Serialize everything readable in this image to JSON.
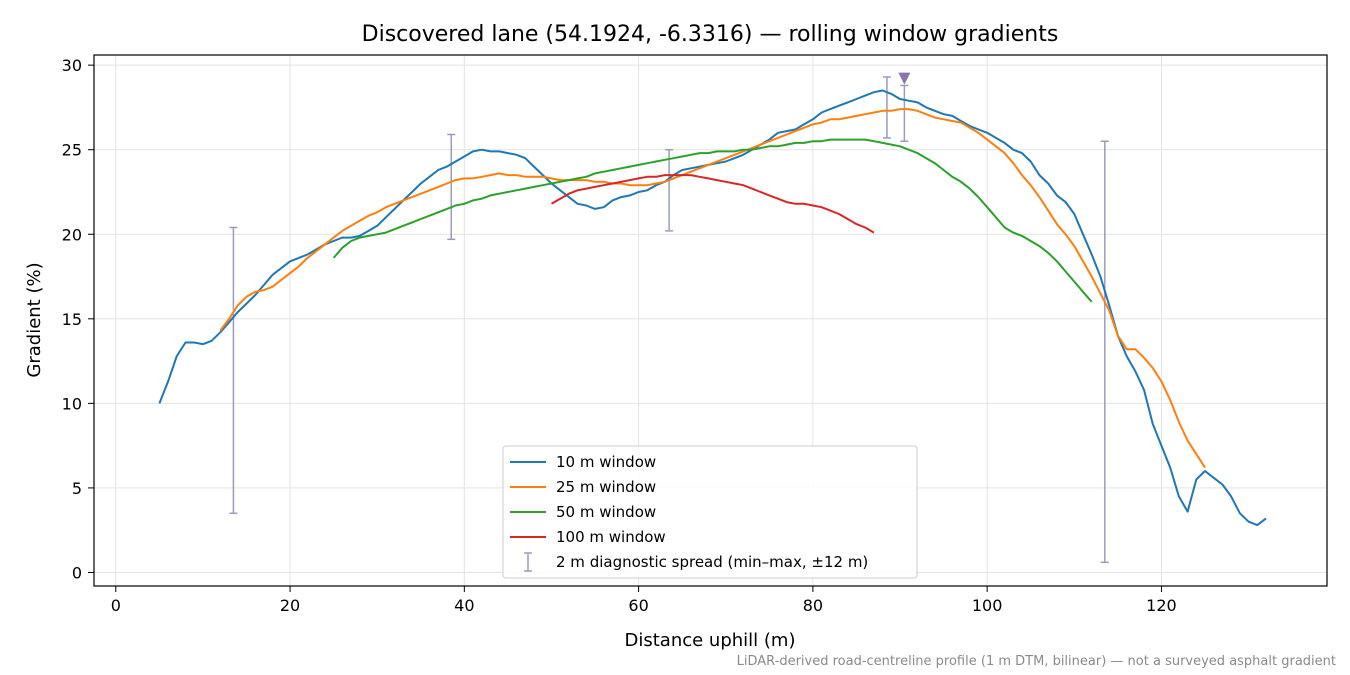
{
  "chart_data": {
    "type": "line",
    "title": "Discovered lane (54.1924, -6.3316) — rolling window gradients",
    "xlabel": "Distance uphill (m)",
    "ylabel": "Gradient (%)",
    "xlim": [
      -2.5,
      139
    ],
    "ylim": [
      -0.8,
      30.6
    ],
    "xticks": [
      0,
      20,
      40,
      60,
      80,
      100,
      120
    ],
    "yticks": [
      0,
      5,
      10,
      15,
      20,
      25,
      30
    ],
    "grid": true,
    "legend_position": "bottom-center",
    "footnote": "LiDAR-derived road-centreline profile (1 m DTM, bilinear) — not a surveyed asphalt gradient",
    "series": [
      {
        "name": "10 m window",
        "color": "#1f77b4",
        "x": [
          5,
          6,
          7,
          8,
          9,
          10,
          11,
          12,
          13,
          14,
          15,
          16,
          17,
          18,
          19,
          20,
          21,
          22,
          23,
          24,
          25,
          26,
          27,
          28,
          29,
          30,
          31,
          32,
          33,
          34,
          35,
          36,
          37,
          38,
          39,
          40,
          41,
          42,
          43,
          44,
          45,
          46,
          47,
          48,
          49,
          50,
          51,
          52,
          53,
          54,
          55,
          56,
          57,
          58,
          59,
          60,
          61,
          62,
          63,
          64,
          65,
          66,
          67,
          68,
          69,
          70,
          71,
          72,
          73,
          74,
          75,
          76,
          77,
          78,
          79,
          80,
          81,
          82,
          83,
          84,
          85,
          86,
          87,
          88,
          89,
          90,
          91,
          92,
          93,
          94,
          95,
          96,
          97,
          98,
          99,
          100,
          101,
          102,
          103,
          104,
          105,
          106,
          107,
          108,
          109,
          110,
          111,
          112,
          113,
          114,
          115,
          116,
          117,
          118,
          119,
          120,
          121,
          122,
          123,
          124,
          125,
          126,
          127,
          128,
          129,
          130,
          131,
          132
        ],
        "values": [
          10.0,
          11.3,
          12.8,
          13.6,
          13.6,
          13.5,
          13.7,
          14.2,
          14.8,
          15.4,
          15.9,
          16.4,
          17.0,
          17.6,
          18.0,
          18.4,
          18.6,
          18.8,
          19.1,
          19.4,
          19.6,
          19.8,
          19.8,
          19.9,
          20.2,
          20.5,
          21.0,
          21.5,
          22.0,
          22.5,
          23.0,
          23.4,
          23.8,
          24.0,
          24.3,
          24.6,
          24.9,
          25.0,
          24.9,
          24.9,
          24.8,
          24.7,
          24.5,
          24.0,
          23.5,
          23.0,
          22.6,
          22.2,
          21.8,
          21.7,
          21.5,
          21.6,
          22.0,
          22.2,
          22.3,
          22.5,
          22.6,
          22.9,
          23.1,
          23.5,
          23.8,
          23.9,
          24.0,
          24.1,
          24.2,
          24.3,
          24.5,
          24.7,
          25.0,
          25.3,
          25.6,
          26.0,
          26.1,
          26.2,
          26.5,
          26.8,
          27.2,
          27.4,
          27.6,
          27.8,
          28.0,
          28.2,
          28.4,
          28.5,
          28.3,
          28.0,
          27.9,
          27.8,
          27.5,
          27.3,
          27.1,
          27.0,
          26.7,
          26.4,
          26.2,
          26.0,
          25.7,
          25.4,
          25.0,
          24.8,
          24.3,
          23.5,
          23.0,
          22.3,
          21.9,
          21.2,
          20.0,
          18.8,
          17.5,
          15.8,
          14.0,
          12.8,
          11.9,
          10.8,
          8.8,
          7.5,
          6.2,
          4.5,
          3.6,
          5.5,
          6.0,
          5.6,
          5.2,
          4.5,
          3.5,
          3.0,
          2.8,
          3.2
        ]
      },
      {
        "name": "25 m window",
        "color": "#ff7f0e",
        "x": [
          12,
          13,
          14,
          15,
          16,
          17,
          18,
          19,
          20,
          21,
          22,
          23,
          24,
          25,
          26,
          27,
          28,
          29,
          30,
          31,
          32,
          33,
          34,
          35,
          36,
          37,
          38,
          39,
          40,
          41,
          42,
          43,
          44,
          45,
          46,
          47,
          48,
          49,
          50,
          51,
          52,
          53,
          54,
          55,
          56,
          57,
          58,
          59,
          60,
          61,
          62,
          63,
          64,
          65,
          66,
          67,
          68,
          69,
          70,
          71,
          72,
          73,
          74,
          75,
          76,
          77,
          78,
          79,
          80,
          81,
          82,
          83,
          84,
          85,
          86,
          87,
          88,
          89,
          90,
          91,
          92,
          93,
          94,
          95,
          96,
          97,
          98,
          99,
          100,
          101,
          102,
          103,
          104,
          105,
          106,
          107,
          108,
          109,
          110,
          111,
          112,
          113,
          114,
          115,
          116,
          117,
          118,
          119,
          120,
          121,
          122,
          123,
          124,
          125
        ],
        "values": [
          14.3,
          15.0,
          15.8,
          16.3,
          16.6,
          16.7,
          16.9,
          17.3,
          17.7,
          18.1,
          18.6,
          19.0,
          19.4,
          19.8,
          20.2,
          20.5,
          20.8,
          21.1,
          21.3,
          21.6,
          21.8,
          22.0,
          22.2,
          22.4,
          22.6,
          22.8,
          23.0,
          23.2,
          23.3,
          23.3,
          23.4,
          23.5,
          23.6,
          23.5,
          23.5,
          23.4,
          23.4,
          23.4,
          23.3,
          23.2,
          23.2,
          23.2,
          23.2,
          23.1,
          23.1,
          23.0,
          23.0,
          22.9,
          22.9,
          22.9,
          23.0,
          23.1,
          23.3,
          23.5,
          23.7,
          23.9,
          24.1,
          24.3,
          24.5,
          24.7,
          24.9,
          25.1,
          25.3,
          25.5,
          25.7,
          25.9,
          26.1,
          26.3,
          26.5,
          26.6,
          26.8,
          26.8,
          26.9,
          27.0,
          27.1,
          27.2,
          27.3,
          27.3,
          27.4,
          27.4,
          27.3,
          27.1,
          26.9,
          26.8,
          26.7,
          26.6,
          26.3,
          26.0,
          25.6,
          25.2,
          24.8,
          24.2,
          23.5,
          22.9,
          22.2,
          21.4,
          20.6,
          20.0,
          19.3,
          18.4,
          17.5,
          16.5,
          15.5,
          14.0,
          13.2,
          13.2,
          12.7,
          12.1,
          11.3,
          10.2,
          8.9,
          7.8,
          7.0,
          6.2
        ]
      },
      {
        "name": "50 m window",
        "color": "#2ca02c",
        "x": [
          25,
          26,
          27,
          28,
          29,
          30,
          31,
          32,
          33,
          34,
          35,
          36,
          37,
          38,
          39,
          40,
          41,
          42,
          43,
          44,
          45,
          46,
          47,
          48,
          49,
          50,
          51,
          52,
          53,
          54,
          55,
          56,
          57,
          58,
          59,
          60,
          61,
          62,
          63,
          64,
          65,
          66,
          67,
          68,
          69,
          70,
          71,
          72,
          73,
          74,
          75,
          76,
          77,
          78,
          79,
          80,
          81,
          82,
          83,
          84,
          85,
          86,
          87,
          88,
          89,
          90,
          91,
          92,
          93,
          94,
          95,
          96,
          97,
          98,
          99,
          100,
          101,
          102,
          103,
          104,
          105,
          106,
          107,
          108,
          109,
          110,
          111,
          112
        ],
        "values": [
          18.6,
          19.2,
          19.6,
          19.8,
          19.9,
          20.0,
          20.1,
          20.3,
          20.5,
          20.7,
          20.9,
          21.1,
          21.3,
          21.5,
          21.7,
          21.8,
          22.0,
          22.1,
          22.3,
          22.4,
          22.5,
          22.6,
          22.7,
          22.8,
          22.9,
          23.0,
          23.1,
          23.2,
          23.3,
          23.4,
          23.6,
          23.7,
          23.8,
          23.9,
          24.0,
          24.1,
          24.2,
          24.3,
          24.4,
          24.5,
          24.6,
          24.7,
          24.8,
          24.8,
          24.9,
          24.9,
          24.9,
          25.0,
          25.0,
          25.1,
          25.2,
          25.2,
          25.3,
          25.4,
          25.4,
          25.5,
          25.5,
          25.6,
          25.6,
          25.6,
          25.6,
          25.6,
          25.5,
          25.4,
          25.3,
          25.2,
          25.0,
          24.8,
          24.5,
          24.2,
          23.8,
          23.4,
          23.1,
          22.7,
          22.2,
          21.6,
          21.0,
          20.4,
          20.1,
          19.9,
          19.6,
          19.3,
          18.9,
          18.4,
          17.8,
          17.2,
          16.6,
          16.0
        ]
      },
      {
        "name": "100 m window",
        "color": "#d62728",
        "x": [
          50,
          51,
          52,
          53,
          54,
          55,
          56,
          57,
          58,
          59,
          60,
          61,
          62,
          63,
          64,
          65,
          66,
          67,
          68,
          69,
          70,
          71,
          72,
          73,
          74,
          75,
          76,
          77,
          78,
          79,
          80,
          81,
          82,
          83,
          84,
          85,
          86,
          87
        ],
        "values": [
          21.8,
          22.1,
          22.4,
          22.6,
          22.7,
          22.8,
          22.9,
          23.0,
          23.1,
          23.2,
          23.3,
          23.4,
          23.4,
          23.5,
          23.5,
          23.5,
          23.5,
          23.4,
          23.3,
          23.2,
          23.1,
          23.0,
          22.9,
          22.7,
          22.5,
          22.3,
          22.1,
          21.9,
          21.8,
          21.8,
          21.7,
          21.6,
          21.4,
          21.2,
          20.9,
          20.6,
          20.4,
          20.1
        ]
      }
    ],
    "errorbars": {
      "name": "2 m diagnostic spread (min–max, ±12 m)",
      "color": "#9b9bc0",
      "points": [
        {
          "x": 13.5,
          "low": 3.5,
          "high": 20.4
        },
        {
          "x": 38.5,
          "low": 19.7,
          "high": 25.9
        },
        {
          "x": 63.5,
          "low": 20.2,
          "high": 25.0
        },
        {
          "x": 88.5,
          "low": 25.7,
          "high": 29.3
        },
        {
          "x": 90.5,
          "low": 25.5,
          "high": 28.8
        },
        {
          "x": 113.5,
          "low": 0.6,
          "high": 25.5
        }
      ]
    },
    "peak_marker": {
      "x": 90.5,
      "y": 29.2,
      "color": "#8a76a8"
    }
  }
}
